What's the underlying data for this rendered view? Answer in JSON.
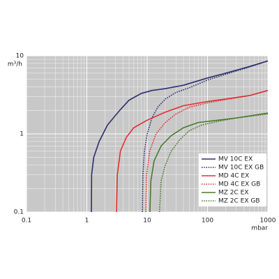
{
  "chart_data": {
    "type": "line",
    "x_label": "mbar",
    "y_label": "m³/h",
    "xscale": "log",
    "yscale": "log",
    "grid": true,
    "xlim": [
      0.1,
      1000
    ],
    "ylim": [
      0.1,
      10
    ],
    "xticks": [
      0.1,
      1,
      10,
      100,
      1000
    ],
    "yticks": [
      0.1,
      1,
      10
    ],
    "legend": "lower right",
    "series": [
      {
        "name": "MV 10C EX",
        "color": "#2b2f6e",
        "style": "solid",
        "x": [
          1.19,
          1.2,
          1.3,
          1.6,
          2.2,
          3.5,
          5,
          8,
          12,
          20,
          40,
          100,
          200,
          500,
          1000
        ],
        "values": [
          0.1,
          0.3,
          0.5,
          0.8,
          1.3,
          2,
          2.7,
          3.3,
          3.6,
          3.8,
          4.2,
          5.2,
          6,
          7.3,
          8.6
        ]
      },
      {
        "name": "MV 10C EX GB",
        "color": "#2b2f6e",
        "style": "dotted",
        "x": [
          8.3,
          8.5,
          9,
          10,
          12,
          15,
          20,
          30,
          50,
          100,
          200,
          500,
          1000
        ],
        "values": [
          0.1,
          0.3,
          0.6,
          1,
          1.6,
          2.2,
          2.8,
          3.4,
          3.9,
          4.9,
          5.8,
          7.2,
          8.6
        ]
      },
      {
        "name": "MD 4C EX",
        "color": "#e03030",
        "style": "solid",
        "x": [
          3.1,
          3.2,
          3.6,
          4.5,
          6,
          10,
          20,
          40,
          100,
          200,
          500,
          1000
        ],
        "values": [
          0.1,
          0.3,
          0.6,
          0.9,
          1.2,
          1.5,
          1.9,
          2.3,
          2.6,
          2.8,
          3.1,
          3.6
        ]
      },
      {
        "name": "MD 4C EX GB",
        "color": "#e03030",
        "style": "dotted",
        "x": [
          9.5,
          9.8,
          11,
          14,
          20,
          30,
          50,
          100,
          200,
          500,
          1000
        ],
        "values": [
          0.1,
          0.3,
          0.6,
          1,
          1.4,
          1.8,
          2.2,
          2.5,
          2.75,
          3.1,
          3.6
        ]
      },
      {
        "name": "MZ 2C EX",
        "color": "#4a7a2a",
        "style": "solid",
        "x": [
          11.1,
          11.5,
          13,
          17,
          25,
          40,
          70,
          150,
          300,
          1000
        ],
        "values": [
          0.1,
          0.25,
          0.45,
          0.7,
          0.95,
          1.2,
          1.4,
          1.5,
          1.6,
          1.85
        ]
      },
      {
        "name": "MZ 2C EX GB",
        "color": "#4a7a2a",
        "style": "dotted",
        "x": [
          16,
          17,
          20,
          25,
          35,
          50,
          80,
          150,
          300,
          1000
        ],
        "values": [
          0.1,
          0.25,
          0.4,
          0.6,
          0.85,
          1.1,
          1.3,
          1.45,
          1.6,
          1.8
        ]
      }
    ]
  }
}
